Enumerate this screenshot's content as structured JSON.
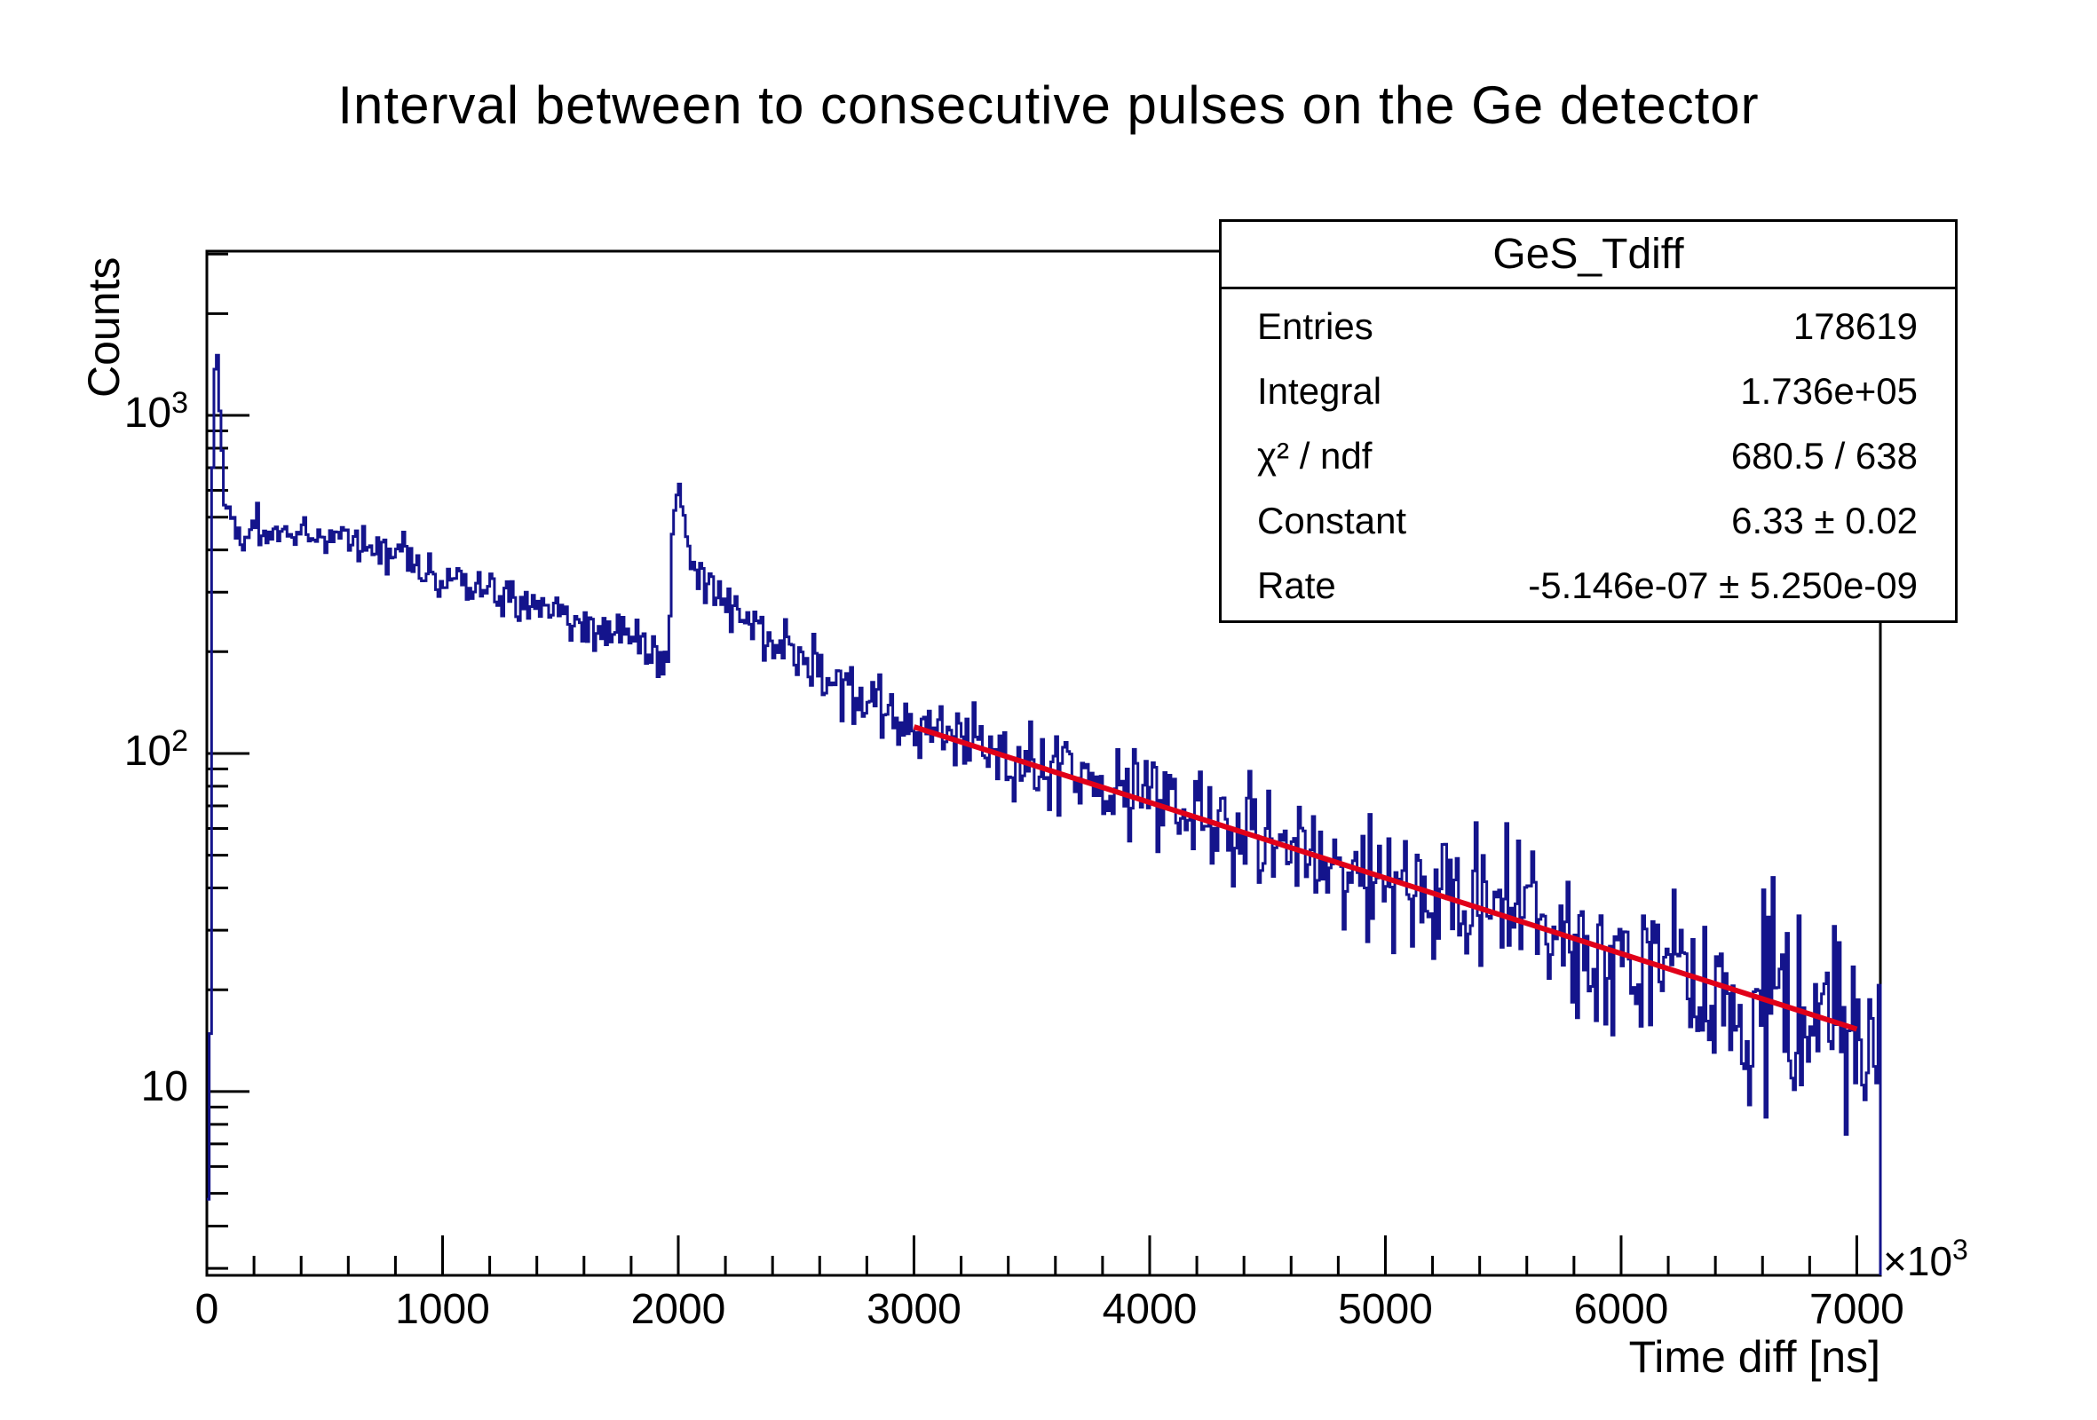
{
  "page": {
    "background": "#ffffff"
  },
  "title": {
    "text": "Interval between to consecutive pulses on the Ge detector"
  },
  "stats_box": {
    "title": "GeS_Tdiff",
    "rows": [
      {
        "label": "Entries",
        "value": "178619"
      },
      {
        "label": "Integral",
        "value": "1.736e+05"
      },
      {
        "label": "χ² / ndf",
        "value": "680.5 / 638"
      },
      {
        "label": "Constant",
        "value": "6.33 ± 0.02"
      },
      {
        "label": "Rate",
        "value": "-5.146e-07 ± 5.250e-09"
      }
    ]
  },
  "axes": {
    "x": {
      "title": "Time diff [ns]",
      "multiplier": {
        "prefix": "×10",
        "exp": "3"
      },
      "range": [
        0,
        7100
      ],
      "major_ticks": [
        0,
        1000,
        2000,
        3000,
        4000,
        5000,
        6000,
        7000
      ],
      "tick_labels": [
        "0",
        "1000",
        "2000",
        "3000",
        "4000",
        "5000",
        "6000",
        "7000"
      ],
      "minor_step": 200
    },
    "y": {
      "title": "Counts",
      "scale": "log",
      "range": [
        2.86,
        3060
      ],
      "major_ticks": [
        {
          "value": 10,
          "base": "10",
          "exp": ""
        },
        {
          "value": 100,
          "base": "10",
          "exp": "2"
        },
        {
          "value": 1000,
          "base": "10",
          "exp": "3"
        }
      ]
    }
  },
  "chart_data": {
    "type": "line",
    "subtype": "step-histogram-log-y",
    "title": "Interval between to consecutive pulses on the Ge detector",
    "xlabel": "Time diff [ns] (×10³)",
    "ylabel": "Counts",
    "x_range": [
      0,
      7100
    ],
    "y_range": [
      2.86,
      3060
    ],
    "bin_width": 10,
    "noise_seed": 20230417,
    "noise_scale": 1.35,
    "noise_cap": 0.32,
    "envelope_points": [
      [
        0,
        3
      ],
      [
        13,
        3
      ],
      [
        18,
        80
      ],
      [
        25,
        750
      ],
      [
        33,
        1350
      ],
      [
        40,
        1600
      ],
      [
        47,
        1480
      ],
      [
        55,
        1050
      ],
      [
        62,
        780
      ],
      [
        70,
        625
      ],
      [
        80,
        550
      ],
      [
        95,
        525
      ],
      [
        115,
        472
      ],
      [
        140,
        440
      ],
      [
        165,
        448
      ],
      [
        190,
        468
      ],
      [
        230,
        465
      ],
      [
        300,
        458
      ],
      [
        400,
        448
      ],
      [
        520,
        430
      ],
      [
        650,
        412
      ],
      [
        800,
        385
      ],
      [
        950,
        352
      ],
      [
        1100,
        320
      ],
      [
        1250,
        295
      ],
      [
        1400,
        268
      ],
      [
        1550,
        248
      ],
      [
        1700,
        232
      ],
      [
        1800,
        222
      ],
      [
        1890,
        208
      ],
      [
        1945,
        192
      ],
      [
        1960,
        210
      ],
      [
        1968,
        300
      ],
      [
        1978,
        480
      ],
      [
        1990,
        565
      ],
      [
        2003,
        585
      ],
      [
        2018,
        540
      ],
      [
        2040,
        430
      ],
      [
        2060,
        370
      ],
      [
        2095,
        320
      ],
      [
        2170,
        290
      ],
      [
        2270,
        255
      ],
      [
        2390,
        219
      ],
      [
        2520,
        195
      ],
      [
        2640,
        172
      ],
      [
        2770,
        156
      ],
      [
        2890,
        140
      ],
      [
        3000,
        120.5
      ]
    ],
    "fit": {
      "name": "exponential",
      "formula": "exp(Constant + Rate * t_ns)",
      "constant": 6.33,
      "rate": -5.146e-07,
      "x_from": 3000,
      "x_to": 7000
    },
    "colors": {
      "histogram": "#14148c",
      "fit": "#e10019",
      "axis": "#000000"
    },
    "legend_position": "none",
    "grid": false
  }
}
